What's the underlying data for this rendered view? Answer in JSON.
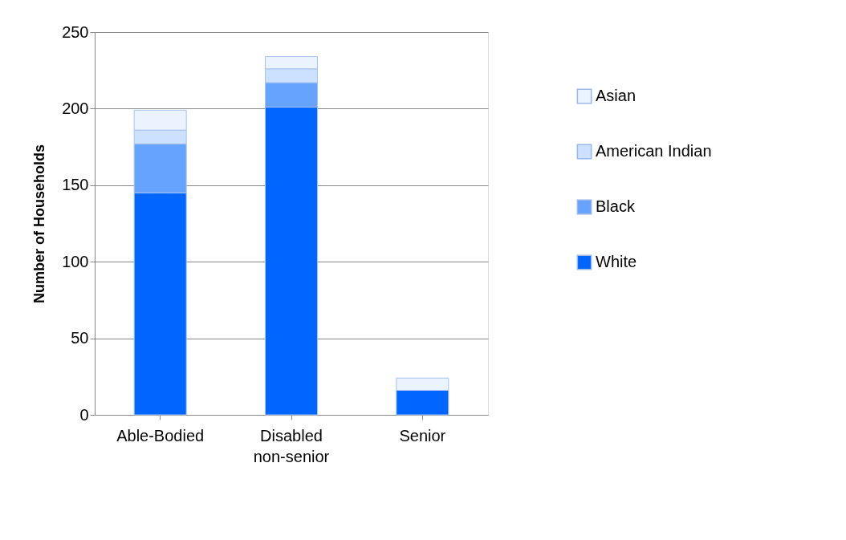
{
  "chart_data": {
    "type": "bar",
    "stacked": true,
    "ylabel": "Number of Households",
    "categories": [
      "Able-Bodied",
      "Disabled\nnon-senior",
      "Senior"
    ],
    "series": [
      {
        "name": "White",
        "color": "#0066ff",
        "values": [
          145,
          201,
          16
        ]
      },
      {
        "name": "Black",
        "color": "#66a3ff",
        "values": [
          32,
          16,
          0
        ]
      },
      {
        "name": "American Indian",
        "color": "#cce0ff",
        "values": [
          9,
          9,
          0
        ]
      },
      {
        "name": "Asian",
        "color": "#ebf3ff",
        "values": [
          13,
          8,
          8
        ]
      }
    ],
    "ylim": [
      0,
      250
    ],
    "yticks": [
      0,
      50,
      100,
      150,
      200,
      250
    ],
    "grid": "y",
    "legend": "right"
  }
}
